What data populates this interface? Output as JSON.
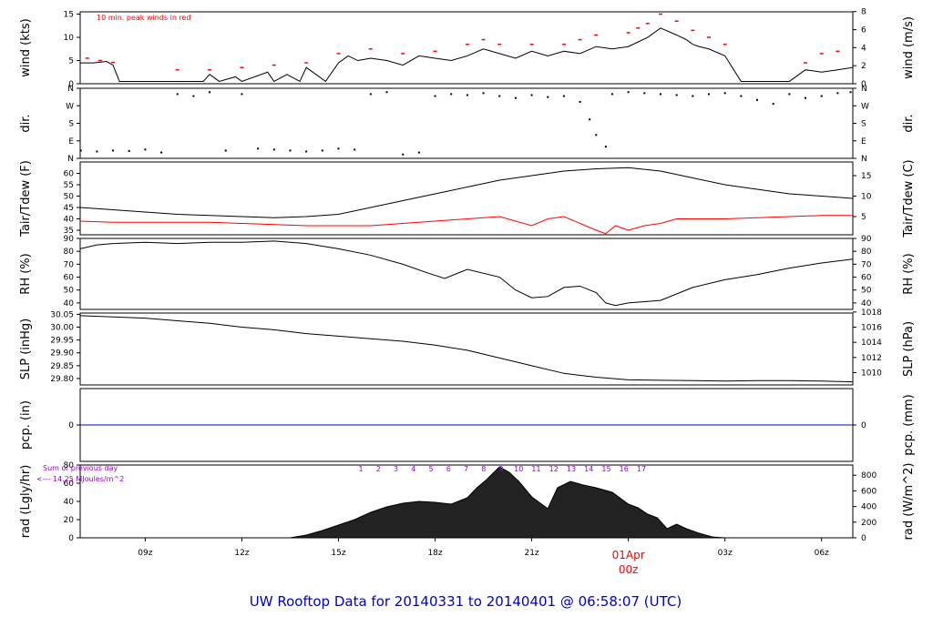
{
  "title": "UW Rooftop Data for 20140331  to  20140401 @ 06:58:07  (UTC)",
  "date_marker": {
    "day": "01Apr",
    "hour": "00z"
  },
  "x_ticks": [
    "09z",
    "12z",
    "15z",
    "18z",
    "21z",
    "03z",
    "06z"
  ],
  "x_tick_hours": [
    9,
    12,
    15,
    18,
    21,
    27,
    30
  ],
  "x_range_hours": [
    6.98,
    30.97
  ],
  "colors": {
    "trace": "#000000",
    "peak": "#ff0000",
    "dewpoint": "#ff0000",
    "precip": "#0000cc",
    "rad_label": "#9900cc",
    "title": "#0000cc",
    "marker": "#ff0000"
  },
  "chart_data": [
    {
      "type": "line",
      "panel": "wind",
      "ylabel": "wind (kts)",
      "ylabel_right": "wind (m/s)",
      "ylim": [
        0,
        15.5
      ],
      "yticks": [
        0,
        5,
        10,
        15
      ],
      "yticks_right": [
        {
          "v": 0,
          "label": "0"
        },
        {
          "v": 3.89,
          "label": "2"
        },
        {
          "v": 7.78,
          "label": "4"
        },
        {
          "v": 11.66,
          "label": "6"
        },
        {
          "v": 15.55,
          "label": "8"
        }
      ],
      "annotation": "10 min. peak winds in red",
      "series": [
        {
          "name": "wind",
          "x": [
            6.98,
            7.4,
            7.8,
            8.0,
            8.2,
            9.0,
            10.0,
            10.8,
            11.0,
            11.3,
            11.8,
            12.0,
            12.8,
            13.0,
            13.4,
            13.8,
            14.0,
            14.6,
            15.0,
            15.3,
            15.6,
            16.0,
            16.5,
            17.0,
            17.5,
            18.0,
            18.5,
            19.0,
            19.5,
            20.0,
            20.5,
            21.0,
            21.5,
            22.0,
            22.5,
            23.0,
            23.5,
            24.0,
            24.3,
            24.6,
            25.0,
            25.5,
            25.8,
            26.0,
            26.2,
            26.5,
            27.0,
            27.5,
            27.8,
            28.0,
            28.5,
            29.0,
            29.5,
            30.0,
            30.5,
            30.97
          ],
          "y": [
            4.5,
            4.5,
            4.8,
            4.0,
            0.5,
            0.5,
            0.5,
            0.5,
            2.0,
            0.5,
            1.5,
            0.5,
            2.5,
            0.5,
            2.0,
            0.5,
            3.5,
            0.5,
            4.5,
            6.0,
            5.0,
            5.5,
            5.0,
            4.0,
            6.0,
            5.5,
            5.0,
            6.0,
            7.5,
            6.5,
            5.5,
            7.0,
            6.0,
            7.0,
            6.5,
            8.0,
            7.5,
            8.0,
            9.0,
            10.0,
            12.0,
            10.5,
            9.5,
            8.5,
            8.0,
            7.5,
            6.0,
            0.5,
            0.5,
            0.5,
            0.5,
            0.5,
            3.0,
            2.5,
            3.0,
            3.5
          ]
        },
        {
          "name": "10 min. peak",
          "x": [
            7.2,
            7.6,
            8.0,
            10.0,
            11.0,
            12.0,
            13.0,
            14.0,
            15.0,
            16.0,
            17.0,
            18.0,
            19.0,
            19.5,
            20.0,
            21.0,
            22.0,
            22.5,
            23.0,
            24.0,
            24.3,
            24.6,
            25.0,
            25.5,
            26.0,
            26.5,
            27.0,
            29.5,
            30.0,
            30.5
          ],
          "y": [
            5.5,
            5.0,
            4.6,
            3.0,
            3.0,
            3.5,
            4.0,
            4.5,
            6.5,
            7.5,
            6.5,
            7.0,
            8.5,
            9.5,
            8.5,
            8.5,
            8.5,
            9.5,
            10.5,
            11.0,
            12.0,
            13.0,
            15.0,
            13.5,
            11.5,
            10.0,
            8.5,
            4.5,
            6.5,
            7.0
          ]
        }
      ]
    },
    {
      "type": "scatter",
      "panel": "dir",
      "ylabel": "dir.",
      "ylabel_right": "dir.",
      "ylim": [
        0,
        360
      ],
      "yticks": [
        0,
        90,
        180,
        270,
        360
      ],
      "ytick_labels": [
        "N",
        "E",
        "S",
        "W",
        "N"
      ],
      "series": [
        {
          "name": "direction",
          "x": [
            7.0,
            7.5,
            8.0,
            8.5,
            9.0,
            9.5,
            10.0,
            10.5,
            11.0,
            11.5,
            12.0,
            12.5,
            13.0,
            13.5,
            14.0,
            14.5,
            15.0,
            15.5,
            16.0,
            16.5,
            17.0,
            17.5,
            18.0,
            18.5,
            19.0,
            19.5,
            20.0,
            20.5,
            21.0,
            21.5,
            22.0,
            22.5,
            22.8,
            23.0,
            23.3,
            23.5,
            24.0,
            24.5,
            25.0,
            25.5,
            26.0,
            26.5,
            27.0,
            27.5,
            28.0,
            28.5,
            29.0,
            29.5,
            30.0,
            30.5,
            30.9
          ],
          "y": [
            40,
            35,
            40,
            38,
            45,
            30,
            330,
            320,
            340,
            40,
            330,
            50,
            45,
            40,
            35,
            40,
            50,
            45,
            330,
            340,
            20,
            30,
            320,
            330,
            325,
            335,
            320,
            310,
            325,
            315,
            320,
            290,
            200,
            120,
            60,
            330,
            340,
            335,
            330,
            325,
            320,
            330,
            335,
            320,
            300,
            280,
            330,
            310,
            320,
            335,
            340
          ]
        }
      ]
    },
    {
      "type": "line",
      "panel": "temperature",
      "ylabel": "Tair/Tdew (F)",
      "ylabel_right": "Tair/Tdew (C)",
      "ylim": [
        33,
        65
      ],
      "yticks": [
        35,
        40,
        45,
        50,
        55,
        60
      ],
      "yticks_right": [
        {
          "v": 41,
          "label": "5"
        },
        {
          "v": 50,
          "label": "10"
        },
        {
          "v": 59,
          "label": "15"
        }
      ],
      "series": [
        {
          "name": "Tair",
          "x": [
            6.98,
            8,
            9,
            10,
            11,
            12,
            13,
            14,
            15,
            16,
            17,
            18,
            19,
            20,
            21,
            22,
            23,
            24,
            25,
            26,
            27,
            28,
            29,
            30,
            30.97
          ],
          "y": [
            45,
            44,
            43,
            42,
            41.5,
            41,
            40.5,
            41,
            42,
            45,
            48,
            51,
            54,
            57,
            59,
            61,
            62,
            62.5,
            61,
            58,
            55,
            53,
            51,
            50,
            49
          ]
        },
        {
          "name": "Tdew",
          "x": [
            6.98,
            8,
            9,
            10,
            11,
            12,
            13,
            14,
            15,
            16,
            17,
            18,
            19,
            20,
            21,
            21.5,
            22,
            22.5,
            23,
            23.3,
            23.6,
            24,
            24.5,
            25,
            25.5,
            26,
            27,
            28,
            29,
            30,
            30.97
          ],
          "y": [
            39,
            38.5,
            38.5,
            38.5,
            38.5,
            38,
            37.5,
            37,
            37,
            37,
            38,
            39,
            40,
            41,
            37,
            40,
            41,
            38,
            35,
            33.5,
            37,
            35,
            37,
            38,
            40,
            40,
            40,
            40.5,
            41,
            41.5,
            41.5
          ]
        }
      ]
    },
    {
      "type": "line",
      "panel": "rh",
      "ylabel": "RH (%)",
      "ylabel_right": "RH (%)",
      "ylim": [
        35,
        90
      ],
      "yticks": [
        40,
        50,
        60,
        70,
        80,
        90
      ],
      "series": [
        {
          "name": "RH",
          "x": [
            6.98,
            7.5,
            8,
            9,
            10,
            11,
            12,
            13,
            14,
            15,
            16,
            17,
            17.8,
            18.3,
            19,
            20,
            20.5,
            21,
            21.5,
            22,
            22.5,
            23,
            23.3,
            23.6,
            24,
            24.5,
            25,
            26,
            27,
            28,
            29,
            30,
            30.97
          ],
          "y": [
            82,
            85,
            86,
            87,
            86,
            87,
            87,
            88,
            86,
            82,
            77,
            70,
            63,
            59,
            66,
            60,
            50,
            44,
            45,
            52,
            53,
            48,
            40,
            38,
            40,
            41,
            42,
            52,
            58,
            62,
            67,
            71,
            74
          ]
        }
      ]
    },
    {
      "type": "line",
      "panel": "slp",
      "ylabel": "SLP (inHg)",
      "ylabel_right": "SLP (hPa)",
      "ylim": [
        29.775,
        30.055
      ],
      "yticks": [
        29.8,
        29.85,
        29.9,
        29.95,
        30.0,
        30.05
      ],
      "ytick_labels": [
        "29.80",
        "29.85",
        "29.90",
        "29.95",
        "30.00",
        "30.05"
      ],
      "yticks_right": [
        {
          "v": 29.823,
          "label": "1010"
        },
        {
          "v": 29.882,
          "label": "1012"
        },
        {
          "v": 29.941,
          "label": "1014"
        },
        {
          "v": 30.0,
          "label": "1016"
        },
        {
          "v": 30.059,
          "label": "1018"
        }
      ],
      "series": [
        {
          "name": "SLP",
          "x": [
            6.98,
            8,
            9,
            10,
            11,
            12,
            13,
            14,
            15,
            16,
            17,
            18,
            19,
            20,
            21,
            22,
            23,
            24,
            25,
            26,
            27,
            28,
            29,
            30,
            30.97
          ],
          "y": [
            30.045,
            30.04,
            30.035,
            30.025,
            30.015,
            30.0,
            29.99,
            29.975,
            29.965,
            29.955,
            29.945,
            29.93,
            29.91,
            29.88,
            29.85,
            29.82,
            29.805,
            29.795,
            29.793,
            29.792,
            29.79,
            29.792,
            29.792,
            29.79,
            29.787
          ]
        }
      ]
    },
    {
      "type": "line",
      "panel": "pcp",
      "ylabel": "pcp. (in)",
      "ylabel_right": "pcp. (mm)",
      "ylim": [
        -1,
        1
      ],
      "yticks": [
        0
      ],
      "yticks_right": [
        {
          "v": 0,
          "label": "0"
        }
      ],
      "series": [
        {
          "name": "pcp",
          "x": [
            6.98,
            30.97
          ],
          "y": [
            0,
            0
          ]
        }
      ]
    },
    {
      "type": "area",
      "panel": "rad",
      "ylabel": "rad (Lgly/hr)",
      "ylabel_right": "rad (W/m^2)",
      "ylim": [
        0,
        80
      ],
      "yticks": [
        0,
        20,
        40,
        60,
        80
      ],
      "yticks_right": [
        {
          "v": 0,
          "label": "0"
        },
        {
          "v": 17.2,
          "label": "200"
        },
        {
          "v": 34.4,
          "label": "400"
        },
        {
          "v": 51.6,
          "label": "600"
        },
        {
          "v": 68.8,
          "label": "800"
        }
      ],
      "sum_label": "Sum of previous day",
      "sum_value": "<--- 14.25 MJoules/m^2",
      "hour_labels": [
        "1",
        "2",
        "3",
        "4",
        "5",
        "6",
        "7",
        "8",
        "9",
        "10",
        "11",
        "12",
        "13",
        "14",
        "15",
        "16",
        "17"
      ],
      "series": [
        {
          "name": "rad",
          "x": [
            6.98,
            13.5,
            14.0,
            14.5,
            15.0,
            15.5,
            16.0,
            16.5,
            17.0,
            17.5,
            18.0,
            18.5,
            19.0,
            19.3,
            19.6,
            20.0,
            20.3,
            20.6,
            21.0,
            21.5,
            21.8,
            22.2,
            22.6,
            23.0,
            23.5,
            24.0,
            24.3,
            24.6,
            24.9,
            25.2,
            25.5,
            25.8,
            26.2,
            26.6,
            27.0,
            30.97
          ],
          "y": [
            0,
            0,
            3,
            8,
            14,
            20,
            28,
            34,
            38,
            40,
            39,
            37,
            44,
            55,
            64,
            78,
            72,
            62,
            45,
            32,
            55,
            62,
            58,
            55,
            50,
            37,
            33,
            26,
            22,
            10,
            15,
            10,
            5,
            1,
            0,
            0
          ]
        }
      ]
    }
  ]
}
